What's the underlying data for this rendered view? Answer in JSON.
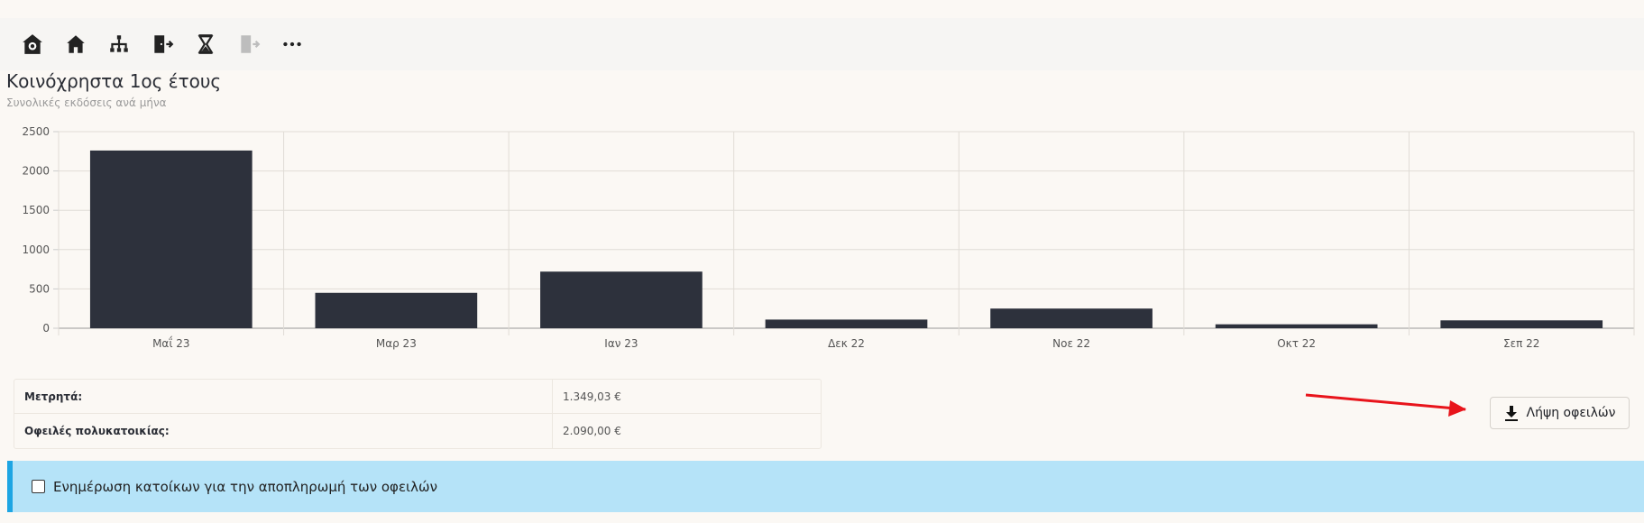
{
  "toolbar": {
    "icons": [
      "building-settings-icon",
      "home-icon",
      "sitemap-icon",
      "door-exit-icon",
      "hourglass-icon",
      "door-exit-disabled-icon",
      "more-icon"
    ]
  },
  "header": {
    "title": "Κοινόχρηστα 1ος έτους",
    "subtitle": "Συνολικές εκδόσεις ανά μήνα"
  },
  "chart_data": {
    "type": "bar",
    "categories": [
      "Μαΐ 23",
      "Μαρ 23",
      "Ιαν 23",
      "Δεκ 22",
      "Νοε 22",
      "Οκτ 22",
      "Σεπ 22"
    ],
    "values": [
      2260,
      450,
      720,
      110,
      250,
      50,
      100
    ],
    "ylim": [
      0,
      2500
    ],
    "yticks": [
      "0",
      "500",
      "1000",
      "1500",
      "2000",
      "2500"
    ],
    "ytick_values": [
      0,
      500,
      1000,
      1500,
      2000,
      2500
    ],
    "bar_color": "#2d313c",
    "grid": true
  },
  "summary": {
    "rows": [
      {
        "label": "Μετρητά:",
        "value": "1.349,03 €"
      },
      {
        "label": "Οφειλές πολυκατοικίας:",
        "value": "2.090,00 €"
      }
    ]
  },
  "download_button": {
    "label": "Λήψη οφειλών",
    "icon": "download-icon"
  },
  "notify_checkbox": {
    "label": "Ενημέρωση κατοίκων για την αποπληρωμή των οφειλών",
    "checked": false
  },
  "colors": {
    "accent_arrow": "#e8141b",
    "alert_bg": "#b5e3f8",
    "alert_border": "#1da5e3"
  }
}
